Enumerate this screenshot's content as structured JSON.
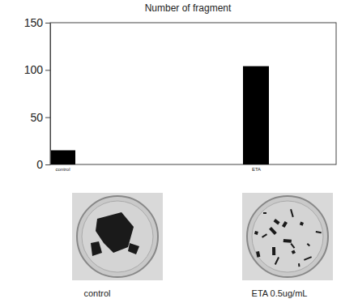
{
  "chart_data": {
    "type": "bar",
    "title": "Number of fragment",
    "categories": [
      "control",
      "ETA"
    ],
    "values": [
      15,
      104
    ],
    "color": "#000000",
    "ylim": [
      0,
      150
    ],
    "yticks": [
      0,
      50,
      100,
      150
    ],
    "grid": false,
    "annotations": [
      "control",
      "ETA 0.5ug/mL"
    ]
  }
}
